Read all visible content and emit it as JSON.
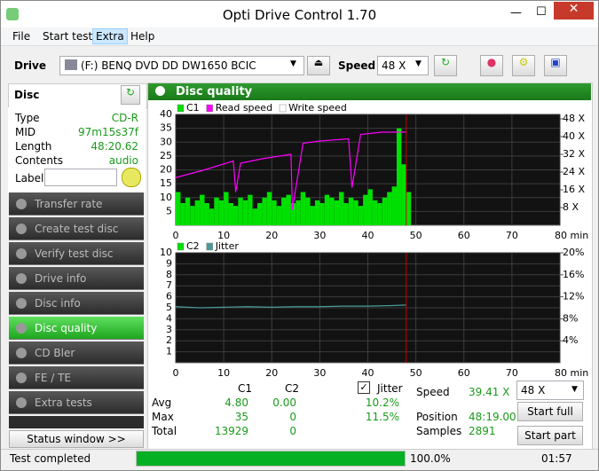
{
  "window": {
    "title": "Opti Drive Control 1.70"
  },
  "menu": [
    "File",
    "Start test",
    "Extra",
    "Help"
  ],
  "toolbar": {
    "drive_label": "Drive",
    "drive": "(F:)  BENQ DVD DD DW1650 BCIC",
    "speed_label": "Speed",
    "speed": "48 X"
  },
  "disc": {
    "header": "Disc",
    "rows": [
      [
        "Type",
        "CD-R"
      ],
      [
        "MID",
        "97m15s37f"
      ],
      [
        "Length",
        "48:20.62"
      ],
      [
        "Contents",
        "audio"
      ]
    ],
    "label": "Label"
  },
  "nav": [
    "Transfer rate",
    "Create test disc",
    "Verify test disc",
    "Drive info",
    "Disc info",
    "Disc quality",
    "CD Bler",
    "FE / TE",
    "Extra tests"
  ],
  "nav_selected": 5,
  "status_window": "Status window >>",
  "panel_title": "Disc quality",
  "charts": [
    {
      "type": "bar",
      "ylim": [
        0,
        40
      ],
      "yticks": [
        5,
        10,
        15,
        20,
        25,
        30,
        35,
        40
      ],
      "y2lim": [
        0,
        50
      ],
      "y2ticks": [
        {
          "value": 8,
          "label": "8 X"
        },
        {
          "value": 16,
          "label": "16 X"
        },
        {
          "value": 24,
          "label": "24 X"
        },
        {
          "value": 32,
          "label": "32 X"
        },
        {
          "value": 40,
          "label": "40 X"
        },
        {
          "value": 48,
          "label": "48 X"
        }
      ],
      "xlim": [
        0,
        80
      ],
      "xticks": [
        0,
        10,
        20,
        30,
        40,
        50,
        60,
        70,
        {
          "value": 80,
          "label": "80 min"
        }
      ],
      "series": [
        {
          "name": "C1",
          "color": "#00e000",
          "type": "bar",
          "x": [
            0,
            1,
            2,
            3,
            4,
            5,
            6,
            7,
            8,
            9,
            10,
            11,
            12,
            13,
            14,
            15,
            16,
            17,
            18,
            19,
            20,
            21,
            22,
            23,
            24,
            25,
            26,
            27,
            28,
            29,
            30,
            31,
            32,
            33,
            34,
            35,
            36,
            37,
            38,
            39,
            40,
            41,
            42,
            43,
            44,
            45,
            46,
            47,
            48
          ],
          "values": [
            12,
            8,
            10,
            7,
            9,
            11,
            8,
            6,
            10,
            9,
            12,
            8,
            7,
            10,
            9,
            11,
            6,
            8,
            10,
            12,
            9,
            7,
            10,
            11,
            8,
            9,
            12,
            10,
            7,
            9,
            8,
            11,
            10,
            9,
            12,
            8,
            10,
            9,
            7,
            11,
            13,
            9,
            8,
            10,
            12,
            14,
            35,
            22,
            12
          ]
        },
        {
          "name": "Read speed",
          "color": "#ff00ff",
          "type": "line",
          "axis": "y2",
          "x": [
            0,
            6,
            12,
            12.5,
            13.5,
            18,
            24,
            24.3,
            26.5,
            30,
            36,
            36.7,
            38.5,
            43,
            48
          ],
          "values": [
            21.5,
            25,
            29,
            15,
            28,
            30,
            32,
            7,
            37,
            38,
            39,
            17,
            41,
            42,
            42
          ]
        },
        {
          "name": "Write speed",
          "color": "#ffffff",
          "type": "line",
          "axis": "y2",
          "x": [],
          "values": []
        }
      ]
    },
    {
      "type": "line",
      "ylim": [
        0,
        10
      ],
      "yticks": [
        1,
        2,
        3,
        4,
        5,
        6,
        7,
        8,
        9,
        10
      ],
      "y2lim": [
        0,
        20
      ],
      "y2ticks": [
        {
          "value": 4,
          "label": "4%"
        },
        {
          "value": 8,
          "label": "8%"
        },
        {
          "value": 12,
          "label": "12%"
        },
        {
          "value": 16,
          "label": "16%"
        },
        {
          "value": 20,
          "label": "20%"
        }
      ],
      "xlim": [
        0,
        80
      ],
      "xticks": [
        0,
        10,
        20,
        30,
        40,
        50,
        60,
        70,
        {
          "value": 80,
          "label": "80 min"
        }
      ],
      "series": [
        {
          "name": "C2",
          "color": "#00e000",
          "type": "bar",
          "x": [],
          "values": []
        },
        {
          "name": "Jitter",
          "color": "#4a9a9a",
          "type": "line",
          "axis": "y2",
          "x": [
            0,
            5,
            10,
            15,
            20,
            25,
            30,
            35,
            40,
            45,
            48
          ],
          "values": [
            10.2,
            10.0,
            10.1,
            10.2,
            10.1,
            10.2,
            10.2,
            10.3,
            10.3,
            10.4,
            10.5
          ]
        }
      ]
    }
  ],
  "stats": {
    "headers": [
      "C1",
      "C2",
      "Jitter"
    ],
    "rows": [
      [
        "Avg",
        "4.80",
        "0.00",
        "10.2%"
      ],
      [
        "Max",
        "35",
        "0",
        "11.5%"
      ],
      [
        "Total",
        "13929",
        "0"
      ]
    ],
    "speed_label": "Speed",
    "speed": "39.41 X",
    "speed_select": "48 X",
    "position_label": "Position",
    "position": "48:19.00",
    "samples_label": "Samples",
    "samples": "2891",
    "buttons": [
      "Start full",
      "Start part"
    ]
  },
  "status": {
    "text": "Test completed",
    "progress": 100.0,
    "progress_label": "100.0%",
    "time": "01:57"
  }
}
